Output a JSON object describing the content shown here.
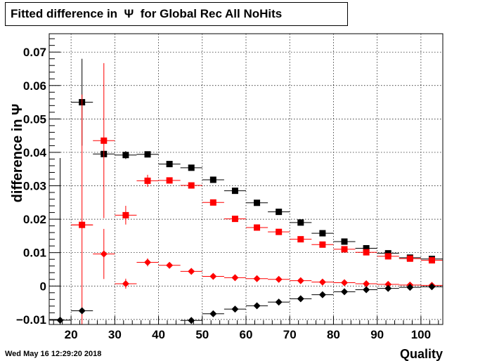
{
  "page": {
    "title": "Fitted difference in  Ψ  for Global Rec All NoHits",
    "footer_timestamp": "Wed May 16 12:29:20 2018"
  },
  "chart_data": {
    "type": "scatter",
    "title": "Fitted difference in  Ψ  for Global Rec All NoHits",
    "xlabel": "Quality",
    "ylabel": "difference in Ψ",
    "xlim": [
      15,
      105
    ],
    "ylim": [
      -0.0115,
      0.0755
    ],
    "x_ticks": [
      20,
      30,
      40,
      50,
      60,
      70,
      80,
      90,
      100
    ],
    "x_tick_labels": [
      "20",
      "30",
      "40",
      "50",
      "60",
      "70",
      "80",
      "90",
      "100"
    ],
    "y_ticks": [
      -0.01,
      0,
      0.01,
      0.02,
      0.03,
      0.04,
      0.05,
      0.06,
      0.07
    ],
    "y_tick_labels": [
      "−0.01",
      "0",
      "0.01",
      "0.02",
      "0.03",
      "0.04",
      "0.05",
      "0.06",
      "0.07"
    ],
    "grid": true,
    "x_bin_half_width": 2.5,
    "series": [
      {
        "marker": "square",
        "color": "#000000",
        "points": [
          {
            "x": 22.5,
            "y": 0.055,
            "err": 0.013
          },
          {
            "x": 27.5,
            "y": 0.0395,
            "err": 0.0
          },
          {
            "x": 32.5,
            "y": 0.0392,
            "err": 0.0012
          },
          {
            "x": 37.5,
            "y": 0.0394,
            "err": 0.0005
          },
          {
            "x": 42.5,
            "y": 0.0365,
            "err": 0.0004
          },
          {
            "x": 47.5,
            "y": 0.0354,
            "err": 0.0003
          },
          {
            "x": 52.5,
            "y": 0.0318,
            "err": 0.0003
          },
          {
            "x": 57.5,
            "y": 0.0285,
            "err": 0.0003
          },
          {
            "x": 62.5,
            "y": 0.0249,
            "err": 0.0002
          },
          {
            "x": 67.5,
            "y": 0.0222,
            "err": 0.0002
          },
          {
            "x": 72.5,
            "y": 0.019,
            "err": 0.0002
          },
          {
            "x": 77.5,
            "y": 0.0158,
            "err": 0.0002
          },
          {
            "x": 82.5,
            "y": 0.0133,
            "err": 0.0002
          },
          {
            "x": 87.5,
            "y": 0.0113,
            "err": 0.0002
          },
          {
            "x": 92.5,
            "y": 0.0098,
            "err": 0.0002
          },
          {
            "x": 97.5,
            "y": 0.0085,
            "err": 0.0002
          },
          {
            "x": 102.5,
            "y": 0.0081,
            "err": 0.0002
          }
        ]
      },
      {
        "marker": "square",
        "color": "#ff0000",
        "points": [
          {
            "x": 22.5,
            "y": 0.0183,
            "err": 0.0
          },
          {
            "x": 27.5,
            "y": 0.0435,
            "err": 0.0232
          },
          {
            "x": 32.5,
            "y": 0.0212,
            "err": 0.0028
          },
          {
            "x": 37.5,
            "y": 0.0315,
            "err": 0.0018
          },
          {
            "x": 42.5,
            "y": 0.0316,
            "err": 0.0008
          },
          {
            "x": 47.5,
            "y": 0.0301,
            "err": 0.0004
          },
          {
            "x": 52.5,
            "y": 0.025,
            "err": 0.0003
          },
          {
            "x": 57.5,
            "y": 0.0201,
            "err": 0.0003
          },
          {
            "x": 62.5,
            "y": 0.0175,
            "err": 0.0002
          },
          {
            "x": 67.5,
            "y": 0.0162,
            "err": 0.0002
          },
          {
            "x": 72.5,
            "y": 0.014,
            "err": 0.0002
          },
          {
            "x": 77.5,
            "y": 0.0124,
            "err": 0.0002
          },
          {
            "x": 82.5,
            "y": 0.011,
            "err": 0.0002
          },
          {
            "x": 87.5,
            "y": 0.0101,
            "err": 0.0002
          },
          {
            "x": 92.5,
            "y": 0.0089,
            "err": 0.0002
          },
          {
            "x": 97.5,
            "y": 0.0082,
            "err": 0.0002
          },
          {
            "x": 102.5,
            "y": 0.0077,
            "err": 0.0002
          }
        ]
      },
      {
        "marker": "diamond",
        "color": "#ff0000",
        "points": [
          {
            "x": 22.5,
            "y": 0.0183,
            "err": 0.039
          },
          {
            "x": 27.5,
            "y": 0.0096,
            "err": 0.0075
          },
          {
            "x": 32.5,
            "y": 0.0007,
            "err": 0.0015
          },
          {
            "x": 37.5,
            "y": 0.0071,
            "err": 0.0012
          },
          {
            "x": 42.5,
            "y": 0.0062,
            "err": 0.0006
          },
          {
            "x": 47.5,
            "y": 0.0044,
            "err": 0.0004
          },
          {
            "x": 52.5,
            "y": 0.0029,
            "err": 0.0003
          },
          {
            "x": 57.5,
            "y": 0.0025,
            "err": 0.0003
          },
          {
            "x": 62.5,
            "y": 0.0022,
            "err": 0.0002
          },
          {
            "x": 67.5,
            "y": 0.002,
            "err": 0.0002
          },
          {
            "x": 72.5,
            "y": 0.0016,
            "err": 0.0002
          },
          {
            "x": 77.5,
            "y": 0.0012,
            "err": 0.0002
          },
          {
            "x": 82.5,
            "y": 0.001,
            "err": 0.0002
          },
          {
            "x": 87.5,
            "y": 0.0007,
            "err": 0.0002
          },
          {
            "x": 92.5,
            "y": 0.0005,
            "err": 0.0002
          },
          {
            "x": 97.5,
            "y": 0.0003,
            "err": 0.0002
          },
          {
            "x": 102.5,
            "y": 0.0002,
            "err": 0.0002
          }
        ]
      },
      {
        "marker": "diamond",
        "color": "#000000",
        "points": [
          {
            "x": 17.5,
            "y": -0.0102,
            "err": 0.0485
          },
          {
            "x": 22.5,
            "y": -0.0074,
            "err": 0.0
          },
          {
            "x": 47.5,
            "y": -0.0103,
            "err": 0.0004
          },
          {
            "x": 52.5,
            "y": -0.0083,
            "err": 0.0003
          },
          {
            "x": 57.5,
            "y": -0.0069,
            "err": 0.0003
          },
          {
            "x": 62.5,
            "y": -0.0059,
            "err": 0.0002
          },
          {
            "x": 67.5,
            "y": -0.0048,
            "err": 0.0002
          },
          {
            "x": 72.5,
            "y": -0.0038,
            "err": 0.0002
          },
          {
            "x": 77.5,
            "y": -0.0026,
            "err": 0.0002
          },
          {
            "x": 82.5,
            "y": -0.0017,
            "err": 0.0002
          },
          {
            "x": 87.5,
            "y": -0.0011,
            "err": 0.0002
          },
          {
            "x": 92.5,
            "y": -0.0007,
            "err": 0.0002
          },
          {
            "x": 97.5,
            "y": -0.0004,
            "err": 0.0002
          },
          {
            "x": 102.5,
            "y": -0.0002,
            "err": 0.0002
          }
        ]
      }
    ]
  }
}
